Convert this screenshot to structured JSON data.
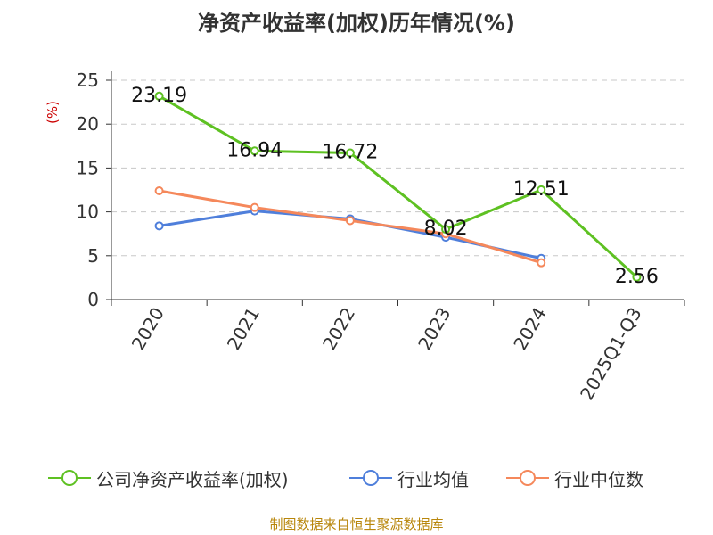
{
  "chart_data": {
    "type": "line",
    "title": "净资产收益率(加权)历年情况(%)",
    "ylabel": "(%)",
    "xlabel": "",
    "categories": [
      "2020",
      "2021",
      "2022",
      "2023",
      "2024",
      "2025Q1-Q3"
    ],
    "ylim": [
      0,
      25
    ],
    "yticks": [
      0,
      5,
      10,
      15,
      20,
      25
    ],
    "grid": true,
    "legend_position": "bottom",
    "series": [
      {
        "name": "公司净资产收益率(加权)",
        "color": "#5ec122",
        "values": [
          23.19,
          16.94,
          16.72,
          8.02,
          12.51,
          2.56
        ],
        "labels": [
          "23.19",
          "16.94",
          "16.72",
          "8.02",
          "12.51",
          "2.56"
        ]
      },
      {
        "name": "行业均值",
        "color": "#4f7fdb",
        "values": [
          8.4,
          10.1,
          9.2,
          7.1,
          4.7,
          null
        ]
      },
      {
        "name": "行业中位数",
        "color": "#f5885b",
        "values": [
          12.4,
          10.5,
          9.0,
          7.5,
          4.2,
          null
        ]
      }
    ]
  },
  "footer": {
    "source": "制图数据来自恒生聚源数据库"
  }
}
